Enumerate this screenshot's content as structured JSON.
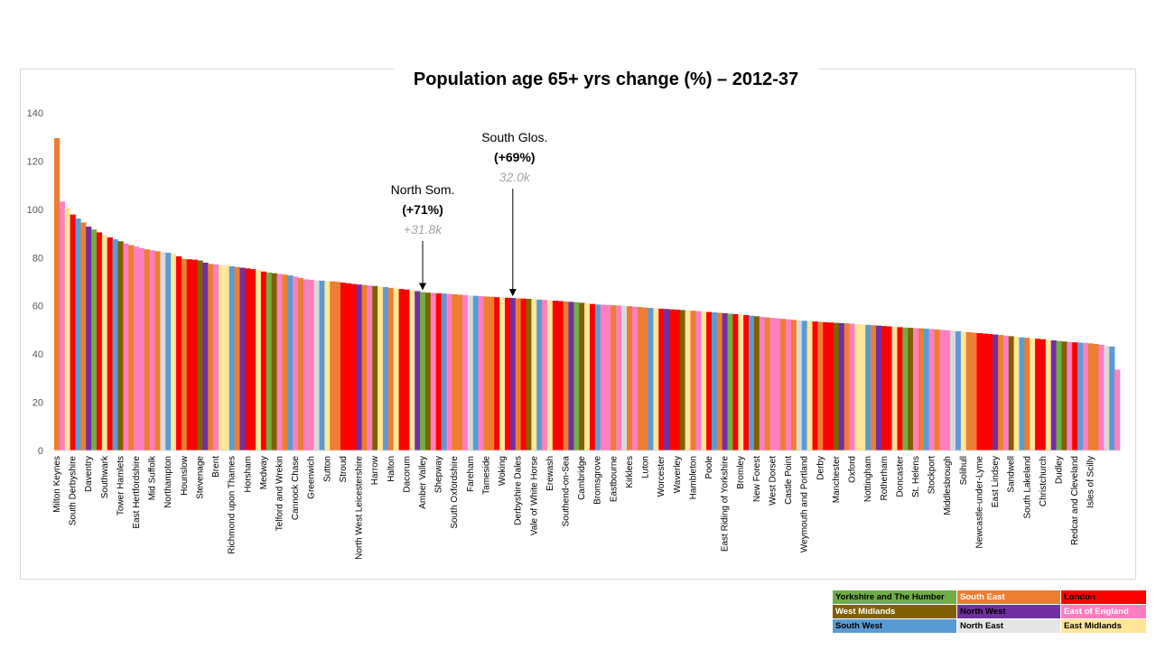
{
  "chart_data": {
    "type": "bar",
    "title": "Population age 65+ yrs change (%) – 2012-37",
    "xlabel": "",
    "ylabel": "",
    "ylim": [
      0,
      140
    ],
    "yticks": [
      0,
      20,
      40,
      60,
      80,
      100,
      120,
      140
    ],
    "grid": false,
    "legend_position": "bottom-right",
    "category_labels": [
      "Milton Keynes",
      "South Derbyshire",
      "Daventry",
      "Southwark",
      "Tower Hamlets",
      "East Hertfordshire",
      "Mid Suffolk",
      "Northampton",
      "Hounslow",
      "Stevenage",
      "Brent",
      "Richmond upon Thames",
      "Horsham",
      "Medway",
      "Telford and Wrekin",
      "Cannock Chase",
      "Greenwich",
      "Sutton",
      "Stroud",
      "North West Leicestershire",
      "Harrow",
      "Halton",
      "Dacorum",
      "Amber Valley",
      "Shepway",
      "South Oxfordshire",
      "Fareham",
      "Tameside",
      "Woking",
      "Derbyshire Dales",
      "Vale of White Horse",
      "Erewash",
      "Southend-on-Sea",
      "Cambridge",
      "Bromsgrove",
      "Eastbourne",
      "Kirklees",
      "Luton",
      "Worcester",
      "Waverley",
      "Hambleton",
      "Poole",
      "East Riding of Yorkshire",
      "Bromley",
      "New Forest",
      "West Dorset",
      "Castle Point",
      "Weymouth and Portland",
      "Derby",
      "Manchester",
      "Oxford",
      "Nottingham",
      "Rotherham",
      "Doncaster",
      "St. Helens",
      "Stockport",
      "Middlesbrough",
      "Solihull",
      "Newcastle-under-Lyme",
      "East Lindsey",
      "Sandwell",
      "South Lakeland",
      "Christchurch",
      "Dudley",
      "Redcar and Cleveland",
      "Isles of Scilly"
    ],
    "bars": {
      "count": 201,
      "anchors": [
        [
          0,
          129.5
        ],
        [
          1,
          107.5
        ],
        [
          2,
          104
        ],
        [
          3,
          102
        ],
        [
          4,
          101.5
        ],
        [
          6,
          99
        ],
        [
          8,
          97
        ],
        [
          10,
          96
        ],
        [
          14,
          93
        ],
        [
          16,
          92
        ],
        [
          22,
          89
        ],
        [
          28,
          87
        ],
        [
          32,
          85.5
        ],
        [
          40,
          83.5
        ],
        [
          46,
          82.5
        ],
        [
          54,
          81.5
        ],
        [
          56,
          79.5
        ],
        [
          64,
          79
        ],
        [
          68,
          77.5
        ],
        [
          78,
          76.5
        ],
        [
          82,
          76
        ],
        [
          90,
          75
        ],
        [
          94,
          74
        ],
        [
          106,
          72.5
        ],
        [
          112,
          71
        ],
        [
          118,
          70.5
        ],
        [
          126,
          70
        ],
        [
          134,
          69
        ],
        [
          140,
          68.5
        ],
        [
          146,
          68
        ],
        [
          150,
          67.5
        ],
        [
          160,
          66.5
        ],
        [
          166,
          65.5
        ],
        [
          176,
          65
        ],
        [
          186,
          64.3
        ],
        [
          196,
          63.7
        ],
        [
          206,
          63.2
        ],
        [
          216,
          62.7
        ],
        [
          226,
          62
        ],
        [
          234,
          61.5
        ],
        [
          244,
          60.5
        ],
        [
          256,
          60
        ],
        [
          266,
          59.2
        ],
        [
          276,
          58.6
        ],
        [
          286,
          58
        ],
        [
          300,
          57
        ],
        [
          310,
          56.2
        ],
        [
          320,
          55.2
        ],
        [
          334,
          54
        ],
        [
          346,
          53.2
        ],
        [
          360,
          52.5
        ],
        [
          370,
          51.8
        ],
        [
          382,
          51
        ],
        [
          392,
          50.5
        ],
        [
          406,
          49.5
        ],
        [
          414,
          48.8
        ],
        [
          424,
          48
        ],
        [
          434,
          47
        ],
        [
          446,
          46
        ],
        [
          456,
          45
        ],
        [
          464,
          44.6
        ],
        [
          470,
          44
        ],
        [
          474,
          43.2
        ],
        [
          477,
          43
        ],
        [
          478,
          33.5
        ]
      ],
      "anchor_scale": 478
    },
    "series_colors": [
      "#ed7d31",
      "#ff0000",
      "#5b9bd5",
      "#ed7d31",
      "#ff7ec0",
      "#ffe699",
      "#ed7d31",
      "#ff7ec0",
      "#ff0000",
      "#ffe699",
      "#ff7ec0",
      "#ed7d31",
      "#ff0000",
      "#7030a0",
      "#ffe699",
      "#806000",
      "#ff0000",
      "#ed7d31",
      "#ff7ec0",
      "#5b9bd5",
      "#70ad47",
      "#ff0000",
      "#ffe699",
      "#7030a0",
      "#ed7d31",
      "#d9d9d9",
      "#ff7ec0",
      "#806000",
      "#ff0000",
      "#5b9bd5"
    ],
    "annotations": [
      {
        "name": "North Som.",
        "pct": "(+71%)",
        "abs": "+31.8k",
        "category_index": 69
      },
      {
        "name": "South Glos.",
        "pct": "(+69%)",
        "abs": "32.0k",
        "category_index": 86
      }
    ],
    "legend": [
      {
        "label": "Yorkshire and The Humber",
        "color": "#70ad47",
        "text_color": "#000000"
      },
      {
        "label": "South East",
        "color": "#ed7d31",
        "text_color": "#ffffff"
      },
      {
        "label": "London",
        "color": "#ff0000",
        "text_color": "#000000"
      },
      {
        "label": "West Midlands",
        "color": "#806000",
        "text_color": "#ffffff"
      },
      {
        "label": "North West",
        "color": "#7030a0",
        "text_color": "#000000"
      },
      {
        "label": "East of England",
        "color": "#ff7ec0",
        "text_color": "#ffffff"
      },
      {
        "label": "South West",
        "color": "#5b9bd5",
        "text_color": "#000000"
      },
      {
        "label": "North East",
        "color": "#e7e6e6",
        "text_color": "#000000"
      },
      {
        "label": "East Midlands",
        "color": "#ffe699",
        "text_color": "#000000"
      }
    ]
  }
}
